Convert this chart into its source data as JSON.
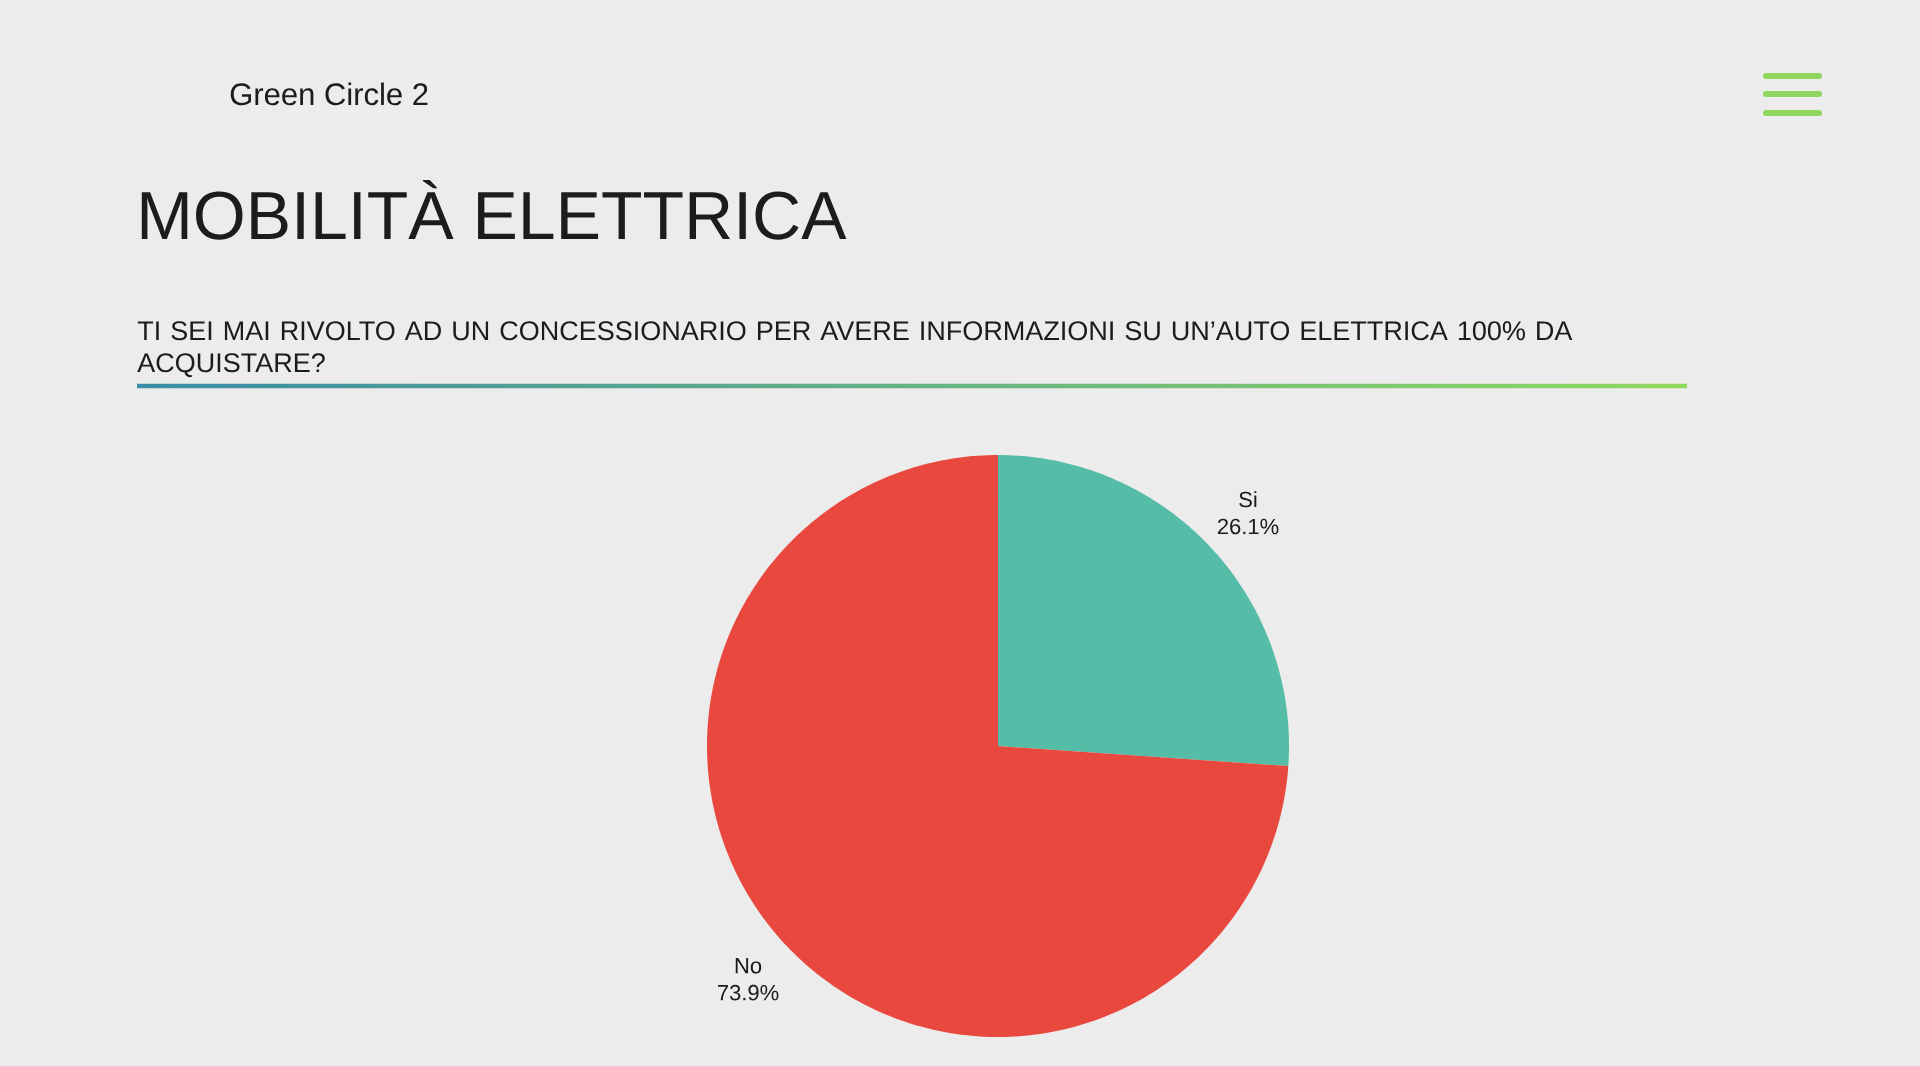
{
  "chart_data": {
    "type": "pie",
    "title": "MOBILITÀ ELETTRICA",
    "subtitle": "TI SEI MAI RIVOLTO AD UN CONCESSIONARIO PER AVERE INFORMAZIONI SU UN’AUTO ELETTRICA 100% DA ACQUISTARE?",
    "annotations": [
      "Green Circle 2"
    ],
    "categories": [
      "Si",
      "No"
    ],
    "values": [
      26.1,
      73.9
    ],
    "colors": [
      "#55bca7",
      "#e9483f"
    ],
    "value_labels": [
      "26.1%",
      "73.9%"
    ]
  }
}
